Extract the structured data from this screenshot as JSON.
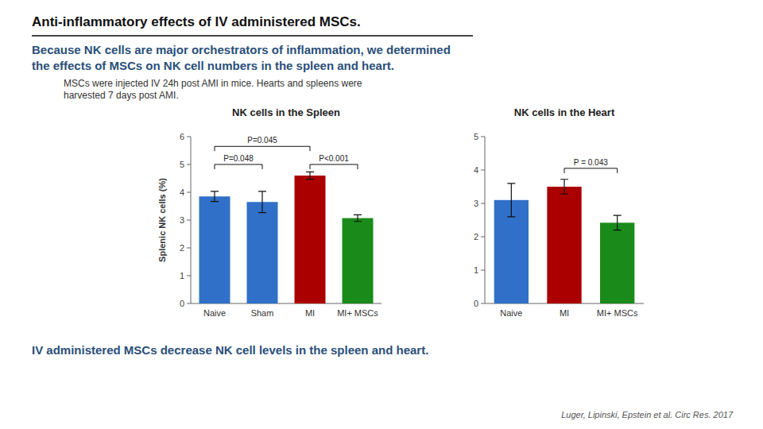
{
  "title": "Anti-inflammatory effects of IV administered MSCs.",
  "subtitle": [
    "Because NK cells are major orchestrators of inflammation, we determined",
    "the effects of MSCs on NK cell numbers in the spleen and heart."
  ],
  "text": [
    "MSCs were injected IV 24h post AMI in mice. Hearts and spleens were",
    "harvested 7 days post AMI."
  ],
  "conclusion": "IV administered MSCs decrease NK cell levels in the spleen and heart.",
  "citation": "Luger, Lipinski, Epstein et al. Circ Res. 2017",
  "chart_data": [
    {
      "type": "bar",
      "title": "NK cells in the Spleen",
      "categories": [
        "Naive",
        "Sham",
        "MI",
        "MI+ MSCs"
      ],
      "values": [
        3.85,
        3.65,
        4.6,
        3.07
      ],
      "errors": [
        0.18,
        0.38,
        0.13,
        0.12
      ],
      "colors": [
        "#3070c8",
        "#3070c8",
        "#aa0000",
        "#1a8a1a"
      ],
      "ylabel": "Splenic NK cells (%)",
      "ylim": [
        0,
        6
      ],
      "yticks": [
        0,
        1,
        2,
        3,
        4,
        5,
        6
      ],
      "grid": false,
      "annotations": [
        {
          "text": "P=0.045",
          "from": "Naive",
          "to": "MI",
          "y": 5.65
        },
        {
          "text": "P=0.048",
          "from": "Naive",
          "to": "Sham",
          "y": 5.0
        },
        {
          "text": "P<0.001",
          "from": "MI",
          "to": "MI+ MSCs",
          "y": 5.0
        }
      ]
    },
    {
      "type": "bar",
      "title": "NK cells in the Heart",
      "categories": [
        "Naive",
        "MI",
        "MI+ MSCs"
      ],
      "values": [
        3.1,
        3.5,
        2.42
      ],
      "errors": [
        0.5,
        0.22,
        0.22
      ],
      "colors": [
        "#3070c8",
        "#aa0000",
        "#1a8a1a"
      ],
      "ylim": [
        0,
        5
      ],
      "yticks": [
        0,
        1,
        2,
        3,
        4,
        5
      ],
      "grid": false,
      "annotations": [
        {
          "text": "P = 0.043",
          "from": "MI",
          "to": "MI+ MSCs",
          "y": 4.05
        }
      ]
    }
  ]
}
